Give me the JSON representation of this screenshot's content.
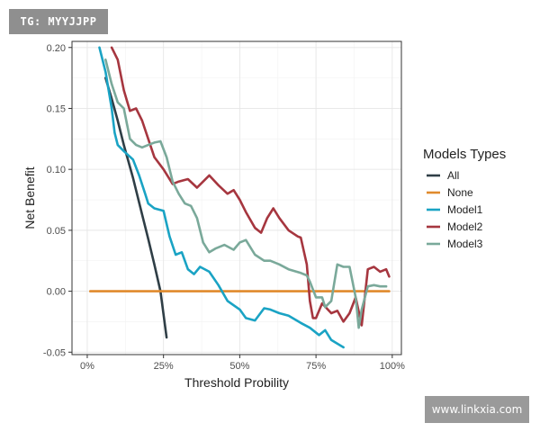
{
  "watermarks": {
    "top_left": "TG: MYYJJPP",
    "bottom_right": "www.linkxia.com"
  },
  "chart_data": {
    "type": "line",
    "xlabel": "Threshold Probility",
    "ylabel": "Net Benefit",
    "xlim": [
      -0.05,
      1.03
    ],
    "ylim": [
      -0.052,
      0.205
    ],
    "x_ticks": [
      0,
      0.25,
      0.5,
      0.75,
      1.0
    ],
    "x_tick_labels": [
      "0%",
      "25%",
      "50%",
      "75%",
      "100%"
    ],
    "y_ticks": [
      -0.05,
      0.0,
      0.05,
      0.1,
      0.15,
      0.2
    ],
    "y_tick_labels": [
      "-0.05",
      "0.00",
      "0.05",
      "0.10",
      "0.15",
      "0.20"
    ],
    "grid": true,
    "legend": {
      "title": "Models Types",
      "position": "right"
    },
    "series": [
      {
        "name": "All",
        "color": "#2f3e46",
        "x": [
          0.06,
          0.08,
          0.1,
          0.12,
          0.15,
          0.18,
          0.2,
          0.22,
          0.24,
          0.26
        ],
        "y": [
          0.175,
          0.158,
          0.14,
          0.12,
          0.093,
          0.063,
          0.043,
          0.022,
          0.0,
          -0.038
        ]
      },
      {
        "name": "None",
        "color": "#e08a2c",
        "x": [
          0.01,
          0.99
        ],
        "y": [
          0.0,
          0.0
        ]
      },
      {
        "name": "Model1",
        "color": "#1aa3c4",
        "x": [
          0.04,
          0.06,
          0.08,
          0.09,
          0.1,
          0.12,
          0.15,
          0.17,
          0.19,
          0.2,
          0.22,
          0.25,
          0.27,
          0.29,
          0.31,
          0.33,
          0.35,
          0.37,
          0.4,
          0.43,
          0.46,
          0.5,
          0.52,
          0.55,
          0.58,
          0.6,
          0.63,
          0.66,
          0.7,
          0.73,
          0.76,
          0.78,
          0.8,
          0.84
        ],
        "y": [
          0.2,
          0.18,
          0.15,
          0.13,
          0.12,
          0.115,
          0.108,
          0.095,
          0.08,
          0.072,
          0.068,
          0.066,
          0.045,
          0.03,
          0.032,
          0.018,
          0.014,
          0.02,
          0.016,
          0.005,
          -0.008,
          -0.015,
          -0.022,
          -0.024,
          -0.014,
          -0.015,
          -0.018,
          -0.02,
          -0.026,
          -0.03,
          -0.036,
          -0.032,
          -0.04,
          -0.046
        ]
      },
      {
        "name": "Model2",
        "color": "#a6363f",
        "x": [
          0.08,
          0.1,
          0.12,
          0.14,
          0.16,
          0.18,
          0.2,
          0.22,
          0.25,
          0.28,
          0.3,
          0.33,
          0.36,
          0.4,
          0.43,
          0.46,
          0.48,
          0.5,
          0.52,
          0.55,
          0.57,
          0.59,
          0.61,
          0.63,
          0.66,
          0.69,
          0.7,
          0.72,
          0.73,
          0.74,
          0.75,
          0.77,
          0.8,
          0.82,
          0.84,
          0.86,
          0.88,
          0.9,
          0.92,
          0.94,
          0.96,
          0.98,
          0.99
        ],
        "y": [
          0.2,
          0.19,
          0.165,
          0.148,
          0.15,
          0.14,
          0.125,
          0.11,
          0.1,
          0.088,
          0.09,
          0.092,
          0.085,
          0.095,
          0.087,
          0.08,
          0.083,
          0.075,
          0.065,
          0.052,
          0.048,
          0.06,
          0.068,
          0.06,
          0.05,
          0.045,
          0.044,
          0.022,
          -0.008,
          -0.022,
          -0.022,
          -0.01,
          -0.018,
          -0.016,
          -0.025,
          -0.018,
          -0.005,
          -0.028,
          0.018,
          0.02,
          0.016,
          0.018,
          0.012
        ]
      },
      {
        "name": "Model3",
        "color": "#7aa99a",
        "x": [
          0.06,
          0.08,
          0.1,
          0.12,
          0.14,
          0.16,
          0.18,
          0.2,
          0.22,
          0.24,
          0.26,
          0.28,
          0.3,
          0.32,
          0.34,
          0.36,
          0.38,
          0.4,
          0.42,
          0.45,
          0.48,
          0.5,
          0.52,
          0.55,
          0.58,
          0.6,
          0.63,
          0.66,
          0.7,
          0.72,
          0.73,
          0.75,
          0.77,
          0.78,
          0.8,
          0.82,
          0.84,
          0.86,
          0.88,
          0.89,
          0.9,
          0.92,
          0.94,
          0.96,
          0.98
        ],
        "y": [
          0.19,
          0.17,
          0.155,
          0.15,
          0.125,
          0.12,
          0.118,
          0.12,
          0.122,
          0.123,
          0.11,
          0.09,
          0.08,
          0.072,
          0.07,
          0.06,
          0.04,
          0.032,
          0.035,
          0.038,
          0.034,
          0.04,
          0.042,
          0.03,
          0.025,
          0.025,
          0.022,
          0.018,
          0.015,
          0.013,
          0.008,
          -0.005,
          -0.005,
          -0.013,
          -0.008,
          0.022,
          0.02,
          0.02,
          -0.005,
          -0.03,
          -0.015,
          0.004,
          0.005,
          0.004,
          0.004
        ]
      }
    ]
  }
}
